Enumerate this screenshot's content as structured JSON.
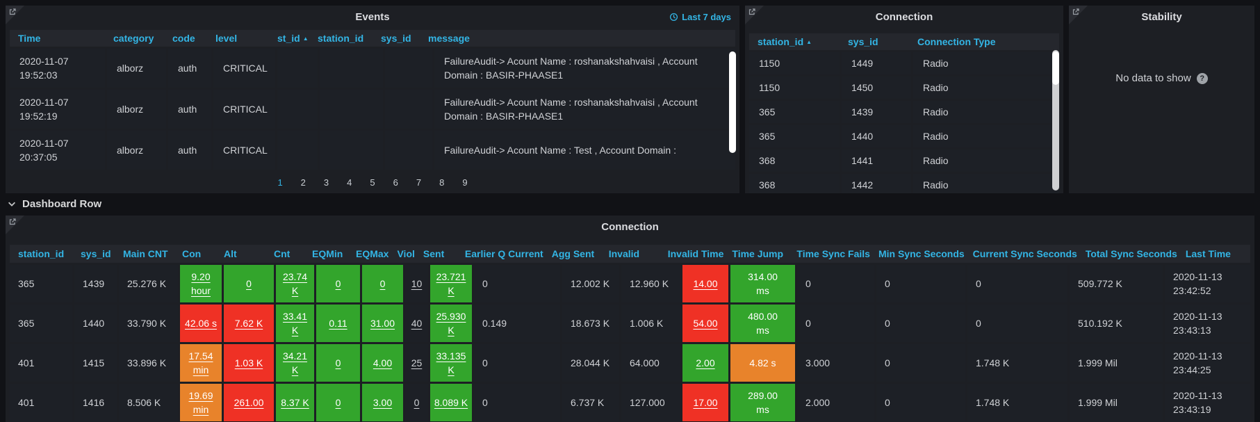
{
  "colors": {
    "accent_blue": "#33b5e5",
    "green": "#33a52c",
    "red": "#ef3125",
    "orange": "#e8832b"
  },
  "events": {
    "title": "Events",
    "time_range_label": "Last 7 days",
    "columns": [
      {
        "label": "Time"
      },
      {
        "label": "category"
      },
      {
        "label": "code"
      },
      {
        "label": "level"
      },
      {
        "label": "st_id",
        "sorted": true
      },
      {
        "label": "station_id"
      },
      {
        "label": "sys_id"
      },
      {
        "label": "message"
      }
    ],
    "rows": [
      [
        "2020-11-07 19:52:03",
        "alborz",
        "auth",
        "CRITICAL",
        "",
        "",
        "",
        "FailureAudit-> Acount Name : roshanakshahvaisi , Account Domain : BASIR-PHAASE1"
      ],
      [
        "2020-11-07 19:52:19",
        "alborz",
        "auth",
        "CRITICAL",
        "",
        "",
        "",
        "FailureAudit-> Acount Name : roshanakshahvaisi , Account Domain : BASIR-PHAASE1"
      ],
      [
        "2020-11-07 20:37:05",
        "alborz",
        "auth",
        "CRITICAL",
        "",
        "",
        "",
        "FailureAudit-> Acount Name : Test , Account Domain :"
      ]
    ],
    "pagination": {
      "pages": [
        "1",
        "2",
        "3",
        "4",
        "5",
        "6",
        "7",
        "8",
        "9"
      ],
      "active": "1"
    }
  },
  "connection_top": {
    "title": "Connection",
    "columns": [
      {
        "label": "station_id",
        "sorted": true
      },
      {
        "label": "sys_id"
      },
      {
        "label": "Connection Type"
      }
    ],
    "rows": [
      [
        "1150",
        "1449",
        "Radio"
      ],
      [
        "1150",
        "1450",
        "Radio"
      ],
      [
        "365",
        "1439",
        "Radio"
      ],
      [
        "365",
        "1440",
        "Radio"
      ],
      [
        "368",
        "1441",
        "Radio"
      ],
      [
        "368",
        "1442",
        "Radio"
      ]
    ]
  },
  "stability": {
    "title": "Stability",
    "empty_message": "No data to show"
  },
  "dashboard_row": {
    "label": "Dashboard Row"
  },
  "connection_main": {
    "title": "Connection",
    "columns": [
      {
        "label": "station_id"
      },
      {
        "label": "sys_id"
      },
      {
        "label": "Main CNT"
      },
      {
        "label": "Con"
      },
      {
        "label": "Alt"
      },
      {
        "label": "Cnt"
      },
      {
        "label": "EQMin"
      },
      {
        "label": "EQMax"
      },
      {
        "label": "Viol"
      },
      {
        "label": "Sent"
      },
      {
        "label": "Earlier Q Current"
      },
      {
        "label": "Agg Sent"
      },
      {
        "label": "Invalid"
      },
      {
        "label": "Invalid Time"
      },
      {
        "label": "Time Jump"
      },
      {
        "label": "Time Sync Fails"
      },
      {
        "label": "Min Sync Seconds"
      },
      {
        "label": "Current Sync Seconds"
      },
      {
        "label": "Total Sync Seconds"
      },
      {
        "label": "Last Time"
      }
    ],
    "rows": [
      [
        "365",
        "1439",
        "25.276 K",
        {
          "v": "9.20 hour",
          "bg": "green",
          "link": true
        },
        {
          "v": "0",
          "bg": "green",
          "link": true
        },
        {
          "v": "23.74 K",
          "bg": "green",
          "link": true
        },
        {
          "v": "0",
          "bg": "green",
          "link": true
        },
        {
          "v": "0",
          "bg": "green",
          "link": true
        },
        {
          "v": "10",
          "link": true
        },
        {
          "v": "23.721 K",
          "bg": "green",
          "link": true
        },
        "0",
        "12.002 K",
        "12.960 K",
        {
          "v": "14.00",
          "bg": "red",
          "link": true
        },
        {
          "v": "314.00 ms",
          "bg": "green"
        },
        "0",
        "0",
        "0",
        "509.772 K",
        "2020-11-13 23:42:52"
      ],
      [
        "365",
        "1440",
        "33.790 K",
        {
          "v": "42.06 s",
          "bg": "red",
          "link": true
        },
        {
          "v": "7.62 K",
          "bg": "red",
          "link": true
        },
        {
          "v": "33.41 K",
          "bg": "green",
          "link": true
        },
        {
          "v": "0.11",
          "bg": "green",
          "link": true
        },
        {
          "v": "31.00",
          "bg": "green",
          "link": true
        },
        {
          "v": "40",
          "link": true
        },
        {
          "v": "25.930 K",
          "bg": "green",
          "link": true
        },
        "0.149",
        "18.673 K",
        "1.006 K",
        {
          "v": "54.00",
          "bg": "red",
          "link": true
        },
        {
          "v": "480.00 ms",
          "bg": "green"
        },
        "0",
        "0",
        "0",
        "510.192 K",
        "2020-11-13 23:43:13"
      ],
      [
        "401",
        "1415",
        "33.896 K",
        {
          "v": "17.54 min",
          "bg": "orange",
          "link": true
        },
        {
          "v": "1.03 K",
          "bg": "red",
          "link": true
        },
        {
          "v": "34.21 K",
          "bg": "green",
          "link": true
        },
        {
          "v": "0",
          "bg": "green",
          "link": true
        },
        {
          "v": "4.00",
          "bg": "green",
          "link": true
        },
        {
          "v": "25",
          "link": true
        },
        {
          "v": "33.135 K",
          "bg": "green",
          "link": true
        },
        "0",
        "28.044 K",
        "64.000",
        {
          "v": "2.00",
          "bg": "green",
          "link": true
        },
        {
          "v": "4.82 s",
          "bg": "orange"
        },
        "3.000",
        "0",
        "1.748 K",
        "1.999 Mil",
        "2020-11-13 23:44:25"
      ],
      [
        "401",
        "1416",
        "8.506 K",
        {
          "v": "19.69 min",
          "bg": "orange",
          "link": true
        },
        {
          "v": "261.00",
          "bg": "red",
          "link": true
        },
        {
          "v": "8.37 K",
          "bg": "green",
          "link": true
        },
        {
          "v": "0",
          "bg": "green",
          "link": true
        },
        {
          "v": "3.00",
          "bg": "green",
          "link": true
        },
        {
          "v": "0",
          "link": true
        },
        {
          "v": "8.089 K",
          "bg": "green",
          "link": true
        },
        "0",
        "6.737 K",
        "127.000",
        {
          "v": "17.00",
          "bg": "red",
          "link": true
        },
        {
          "v": "289.00 ms",
          "bg": "green"
        },
        "2.000",
        "0",
        "1.748 K",
        "1.999 Mil",
        "2020-11-13 23:43:19"
      ]
    ]
  }
}
